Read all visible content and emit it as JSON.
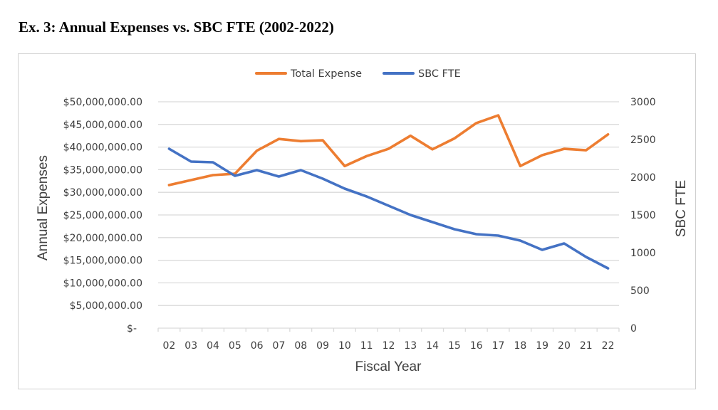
{
  "page": {
    "title": "Ex. 3: Annual Expenses vs. SBC FTE (2002-2022)"
  },
  "chart_data": {
    "type": "line",
    "title": "Ex. 3: Annual Expenses vs. SBC FTE (2002-2022)",
    "xlabel": "Fiscal Year",
    "ylabel": "Annual Expenses",
    "y2label": "SBC FTE",
    "categories": [
      "02",
      "03",
      "04",
      "05",
      "06",
      "07",
      "08",
      "09",
      "10",
      "11",
      "12",
      "13",
      "14",
      "15",
      "16",
      "17",
      "18",
      "19",
      "20",
      "21",
      "22"
    ],
    "ylim": [
      0,
      50000000
    ],
    "y2lim": [
      0,
      3000
    ],
    "yticks": [
      0,
      5000000,
      10000000,
      15000000,
      20000000,
      25000000,
      30000000,
      35000000,
      40000000,
      45000000,
      50000000
    ],
    "ytick_labels": [
      "$-",
      "$5,000,000.00",
      "$10,000,000.00",
      "$15,000,000.00",
      "$20,000,000.00",
      "$25,000,000.00",
      "$30,000,000.00",
      "$35,000,000.00",
      "$40,000,000.00",
      "$45,000,000.00",
      "$50,000,000.00"
    ],
    "y2ticks": [
      0,
      500,
      1000,
      1500,
      2000,
      2500,
      3000
    ],
    "y2tick_labels": [
      "0",
      "500",
      "1000",
      "1500",
      "2000",
      "2500",
      "3000"
    ],
    "grid": true,
    "legend_position": "top-center",
    "series": [
      {
        "name": "Total Expense",
        "axis": "left",
        "color": "#ED7D31",
        "values": [
          31600000,
          32700000,
          33800000,
          34100000,
          39200000,
          41800000,
          41300000,
          41500000,
          35800000,
          38000000,
          39600000,
          42500000,
          39500000,
          41900000,
          45300000,
          47000000,
          35800000,
          38200000,
          39600000,
          39300000,
          42800000
        ]
      },
      {
        "name": "SBC FTE",
        "axis": "right",
        "color": "#4472C4",
        "values": [
          2377,
          2208,
          2198,
          2019,
          2094,
          2009,
          2094,
          1981,
          1849,
          1745,
          1623,
          1500,
          1406,
          1311,
          1245,
          1226,
          1160,
          1038,
          1123,
          943,
          792
        ]
      }
    ]
  },
  "colors": {
    "grid": "#d9d9d9",
    "text": "#404040",
    "frame": "#d0d0d0"
  }
}
